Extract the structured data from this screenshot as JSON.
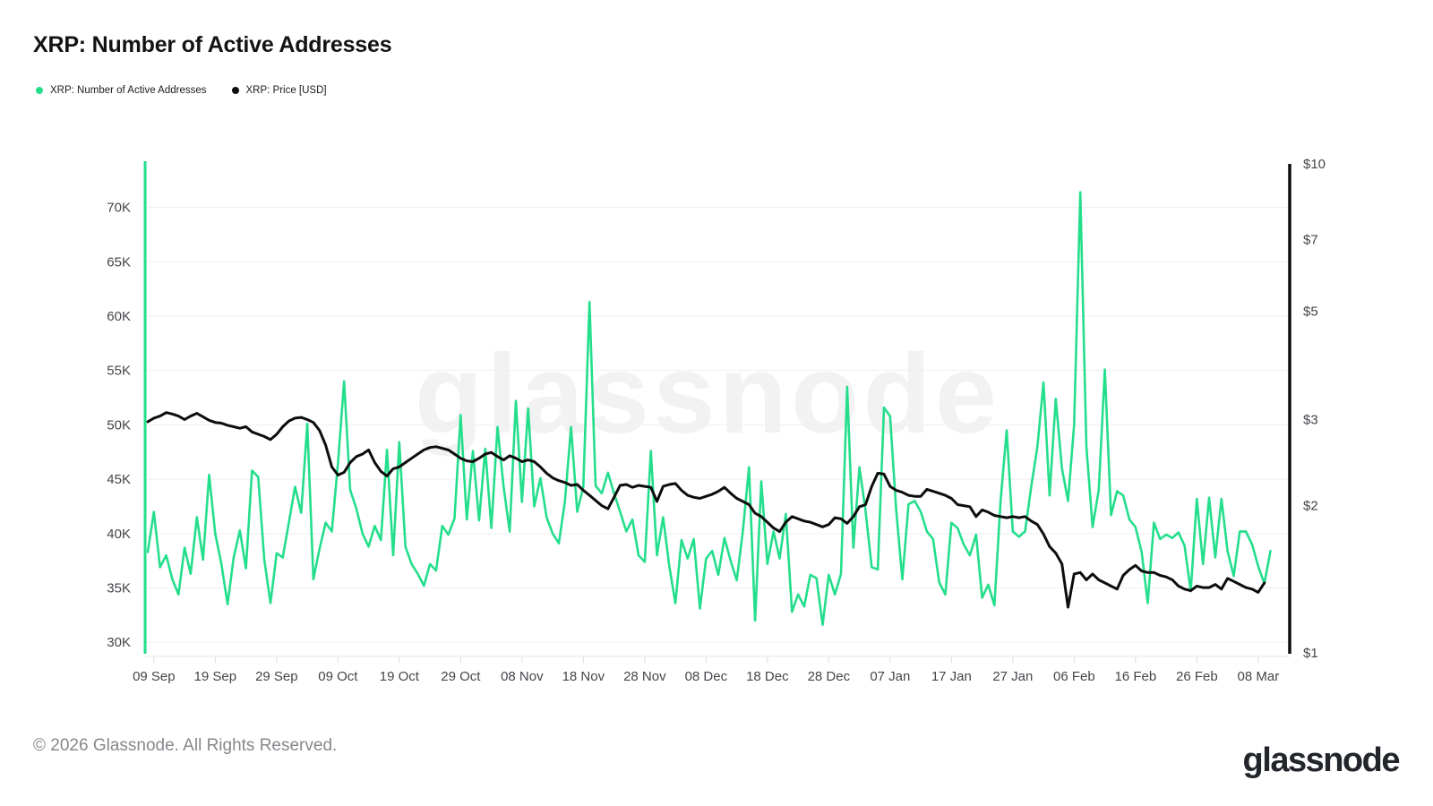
{
  "header": {
    "title": "XRP: Number of Active Addresses"
  },
  "legend": [
    {
      "label": "XRP: Number of Active Addresses",
      "color": "#24DE8C"
    },
    {
      "label": "XRP: Price [USD]",
      "color": "#0d0d0d"
    }
  ],
  "watermark": "glassnode",
  "footer": {
    "copyright": "© 2026 Glassnode. All Rights Reserved.",
    "logo_text": "glassnode"
  },
  "chart_data": {
    "type": "line",
    "title": "XRP: Number of Active Addresses",
    "frequency": "daily",
    "start_date": "08 Sep",
    "end_date": "09 Mar",
    "x_tick_labels": [
      "09 Sep",
      "19 Sep",
      "29 Sep",
      "09 Oct",
      "19 Oct",
      "29 Oct",
      "08 Nov",
      "18 Nov",
      "28 Nov",
      "08 Dec",
      "18 Dec",
      "28 Dec",
      "07 Jan",
      "17 Jan",
      "27 Jan",
      "06 Feb",
      "16 Feb",
      "26 Feb",
      "08 Mar"
    ],
    "left_axis": {
      "title": "Number of Active Addresses",
      "scale": "linear",
      "range_k": [
        28.7,
        74.0
      ],
      "ticks": [
        {
          "value": 30,
          "label": "30K"
        },
        {
          "value": 35,
          "label": "35K"
        },
        {
          "value": 40,
          "label": "40K"
        },
        {
          "value": 45,
          "label": "45K"
        },
        {
          "value": 50,
          "label": "50K"
        },
        {
          "value": 55,
          "label": "55K"
        },
        {
          "value": 60,
          "label": "60K"
        },
        {
          "value": 65,
          "label": "65K"
        },
        {
          "value": 70,
          "label": "70K"
        }
      ],
      "axis_color": "#24DE8C"
    },
    "right_axis": {
      "title": "XRP Price (USD)",
      "scale": "log",
      "range_usd": [
        1,
        10
      ],
      "ticks": [
        {
          "value": 10,
          "label": "$10"
        },
        {
          "value": 7,
          "label": "$7"
        },
        {
          "value": 5,
          "label": "$5"
        },
        {
          "value": 3,
          "label": "$3"
        },
        {
          "value": 2,
          "label": "$2"
        },
        {
          "value": 1,
          "label": "$1"
        }
      ],
      "axis_color": "#0d0d0d"
    },
    "grid": true,
    "legend_position": "top-left",
    "series": [
      {
        "name": "XRP: Number of Active Addresses",
        "axis": "left",
        "unit": "K addresses",
        "color": "#24DE8C",
        "values": [
          38.3,
          42.0,
          36.9,
          38.0,
          35.8,
          34.4,
          38.7,
          36.3,
          41.5,
          37.6,
          45.4,
          40.0,
          37.2,
          33.5,
          37.8,
          40.3,
          36.8,
          45.8,
          45.2,
          37.6,
          33.6,
          38.2,
          37.8,
          41.0,
          44.3,
          41.9,
          50.1,
          35.8,
          38.6,
          41.0,
          40.2,
          46.5,
          54.0,
          44.0,
          42.3,
          40.0,
          38.8,
          40.7,
          39.4,
          47.7,
          38.0,
          48.4,
          38.8,
          37.2,
          36.3,
          35.2,
          37.2,
          36.6,
          40.7,
          39.9,
          41.4,
          50.9,
          41.3,
          47.6,
          41.2,
          47.8,
          40.5,
          49.8,
          44.3,
          40.2,
          52.2,
          42.9,
          51.5,
          42.5,
          45.1,
          41.5,
          40.0,
          39.1,
          43.0,
          49.8,
          42.0,
          44.3,
          61.3,
          44.4,
          43.7,
          45.6,
          43.7,
          42.0,
          40.2,
          41.3,
          38.0,
          37.4,
          47.6,
          38.0,
          41.5,
          37.0,
          33.6,
          39.4,
          37.7,
          39.5,
          33.1,
          37.7,
          38.4,
          36.2,
          39.6,
          37.5,
          35.7,
          40.2,
          46.1,
          32.0,
          44.8,
          37.2,
          40.2,
          37.7,
          41.8,
          32.8,
          34.4,
          33.3,
          36.2,
          35.9,
          31.6,
          36.2,
          34.4,
          36.3,
          53.5,
          38.7,
          46.1,
          42.1,
          36.9,
          36.7,
          51.6,
          50.8,
          42.1,
          35.8,
          42.7,
          43.0,
          42.0,
          40.2,
          39.5,
          35.5,
          34.4,
          41.0,
          40.5,
          39.0,
          38.0,
          39.9,
          34.1,
          35.3,
          33.4,
          43.0,
          49.5,
          40.2,
          39.7,
          40.2,
          44.3,
          48.0,
          53.9,
          43.5,
          52.4,
          46.0,
          43.0,
          50.0,
          71.4,
          48.0,
          40.6,
          44.0,
          55.1,
          41.7,
          43.9,
          43.5,
          41.3,
          40.6,
          38.3,
          33.6,
          41.0,
          39.5,
          39.9,
          39.6,
          40.1,
          38.9,
          34.7,
          43.2,
          37.2,
          43.3,
          37.8,
          43.2,
          38.4,
          36.1,
          40.2,
          40.2,
          39.0,
          37.0,
          35.4,
          38.4
        ]
      },
      {
        "name": "XRP: Price [USD]",
        "axis": "right",
        "unit": "USD",
        "color": "#0d0d0d",
        "values": [
          2.97,
          3.02,
          3.05,
          3.1,
          3.08,
          3.05,
          3.0,
          3.05,
          3.09,
          3.04,
          2.99,
          2.96,
          2.95,
          2.92,
          2.9,
          2.88,
          2.9,
          2.83,
          2.8,
          2.77,
          2.73,
          2.8,
          2.9,
          2.98,
          3.02,
          3.03,
          3.0,
          2.96,
          2.85,
          2.66,
          2.4,
          2.31,
          2.34,
          2.45,
          2.52,
          2.55,
          2.6,
          2.45,
          2.35,
          2.3,
          2.38,
          2.4,
          2.45,
          2.5,
          2.55,
          2.6,
          2.63,
          2.64,
          2.62,
          2.6,
          2.55,
          2.5,
          2.47,
          2.46,
          2.5,
          2.55,
          2.57,
          2.52,
          2.48,
          2.53,
          2.5,
          2.46,
          2.48,
          2.46,
          2.4,
          2.33,
          2.28,
          2.25,
          2.23,
          2.2,
          2.21,
          2.15,
          2.1,
          2.05,
          2.0,
          1.97,
          2.08,
          2.2,
          2.21,
          2.18,
          2.2,
          2.19,
          2.18,
          2.04,
          2.19,
          2.21,
          2.22,
          2.15,
          2.1,
          2.08,
          2.07,
          2.09,
          2.11,
          2.14,
          2.18,
          2.12,
          2.07,
          2.04,
          2.01,
          1.93,
          1.9,
          1.85,
          1.8,
          1.77,
          1.85,
          1.9,
          1.88,
          1.86,
          1.85,
          1.83,
          1.81,
          1.83,
          1.89,
          1.88,
          1.84,
          1.9,
          1.99,
          2.01,
          2.19,
          2.33,
          2.32,
          2.19,
          2.15,
          2.13,
          2.1,
          2.09,
          2.09,
          2.16,
          2.14,
          2.12,
          2.1,
          2.07,
          2.01,
          2.0,
          1.99,
          1.9,
          1.96,
          1.94,
          1.91,
          1.9,
          1.89,
          1.9,
          1.89,
          1.9,
          1.86,
          1.83,
          1.75,
          1.65,
          1.6,
          1.52,
          1.24,
          1.45,
          1.46,
          1.41,
          1.45,
          1.41,
          1.39,
          1.37,
          1.35,
          1.44,
          1.48,
          1.51,
          1.47,
          1.46,
          1.46,
          1.44,
          1.43,
          1.41,
          1.37,
          1.35,
          1.34,
          1.37,
          1.36,
          1.36,
          1.38,
          1.35,
          1.42,
          1.4,
          1.38,
          1.36,
          1.35,
          1.33,
          1.39
        ]
      }
    ]
  }
}
